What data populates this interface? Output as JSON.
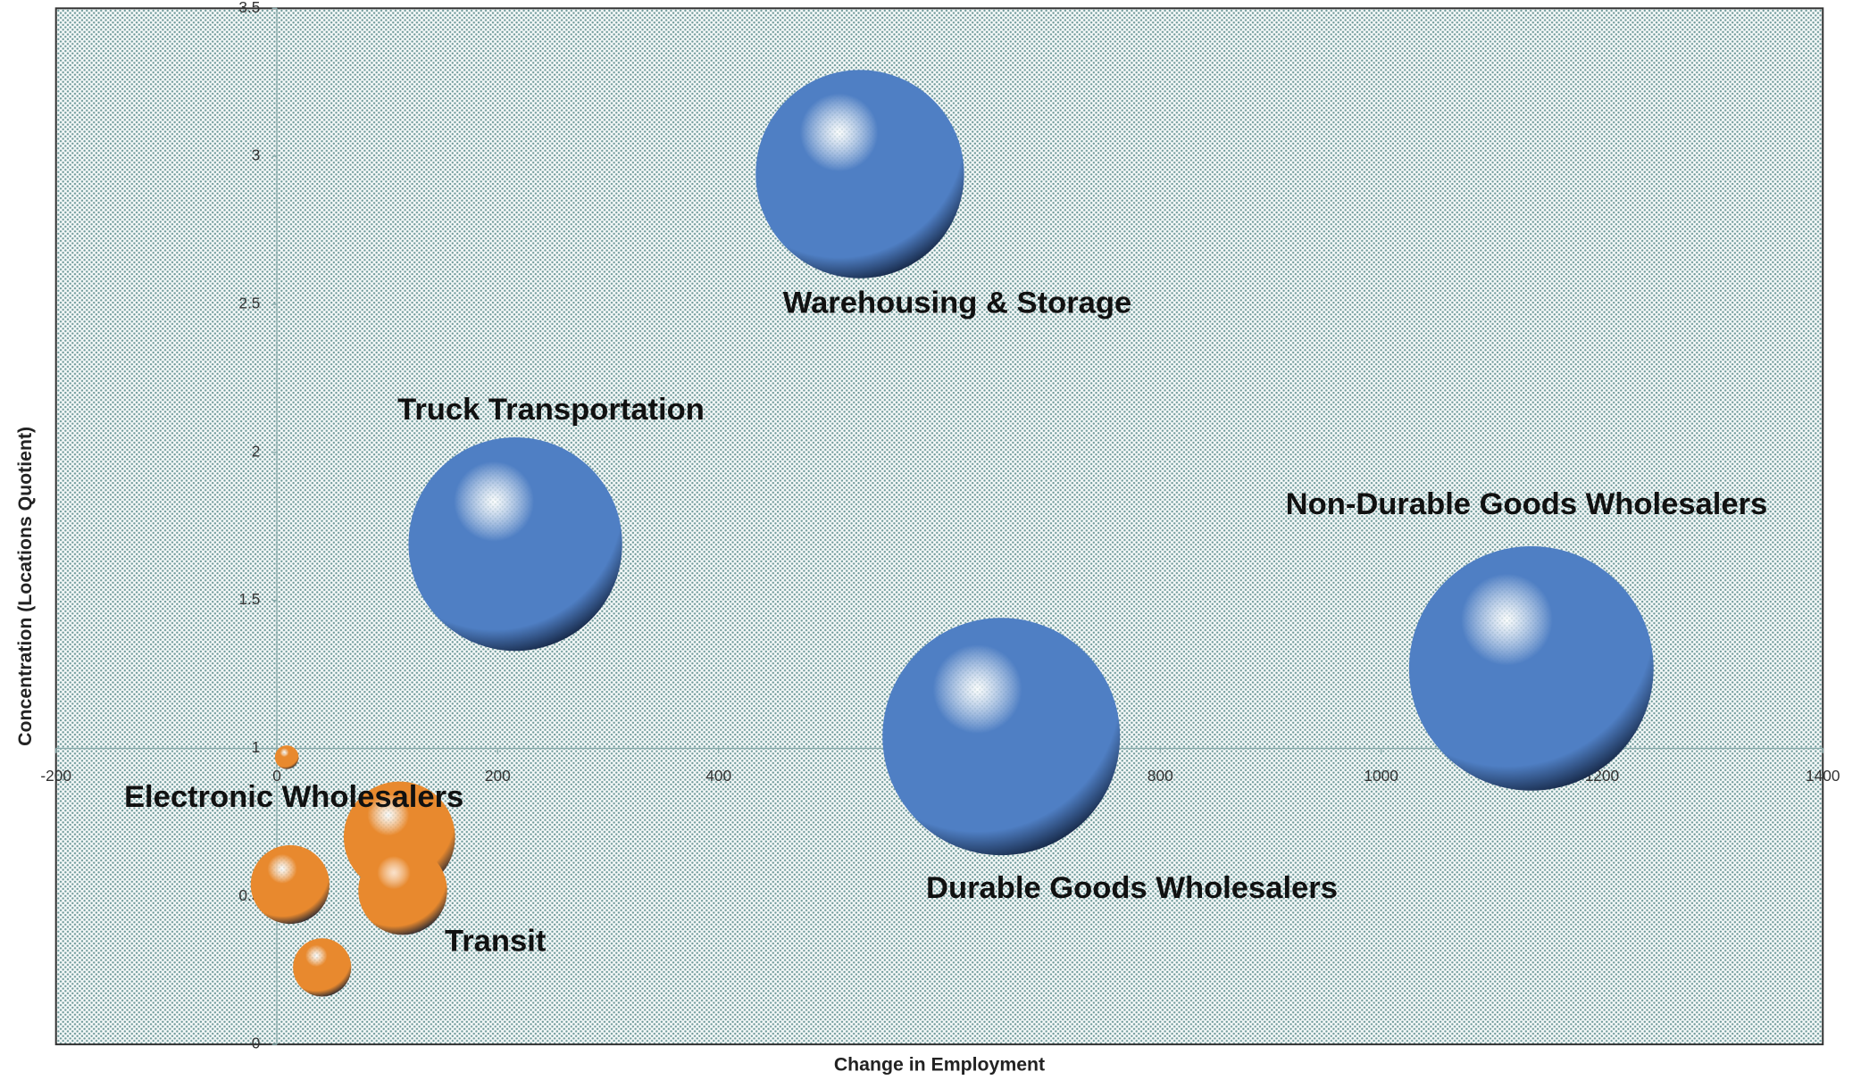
{
  "chart_data": {
    "type": "bubble",
    "xlabel": "Change in Employment",
    "ylabel": "Concentration (Locations Quotient)",
    "xlim": [
      -200,
      1400
    ],
    "xticks": [
      -200,
      0,
      200,
      400,
      600,
      800,
      1000,
      1200,
      1400
    ],
    "ylim": [
      0,
      3.5
    ],
    "yticks": [
      0,
      0.5,
      1,
      1.5,
      2,
      2.5,
      3,
      3.5
    ],
    "x_axis_at": 1,
    "y_axis_at": 0,
    "points": [
      {
        "label": "Warehousing & Storage",
        "x": 528,
        "y": 2.94,
        "size": 77,
        "color": "#4f7fc4"
      },
      {
        "label": "Truck Transportation",
        "x": 216,
        "y": 1.69,
        "size": 81,
        "color": "#4f7fc4"
      },
      {
        "label": "Non-Durable Goods Wholesalers",
        "x": 1136,
        "y": 1.27,
        "size": 106,
        "color": "#4f7fc4"
      },
      {
        "label": "Durable Goods Wholesalers",
        "x": 656,
        "y": 1.04,
        "size": 100,
        "color": "#4f7fc4"
      },
      {
        "label": "Electronic Wholesalers",
        "x": 9,
        "y": 0.97,
        "size": 1,
        "color": "#e8892e"
      },
      {
        "x": 111,
        "y": 0.7,
        "size": 22,
        "color": "#e8892e"
      },
      {
        "label": "Transit",
        "x": 114,
        "y": 0.52,
        "size": 14,
        "color": "#e8892e"
      },
      {
        "x": 12,
        "y": 0.54,
        "size": 11,
        "color": "#e8892e"
      },
      {
        "x": 41,
        "y": 0.26,
        "size": 6,
        "color": "#e8892e"
      }
    ]
  }
}
